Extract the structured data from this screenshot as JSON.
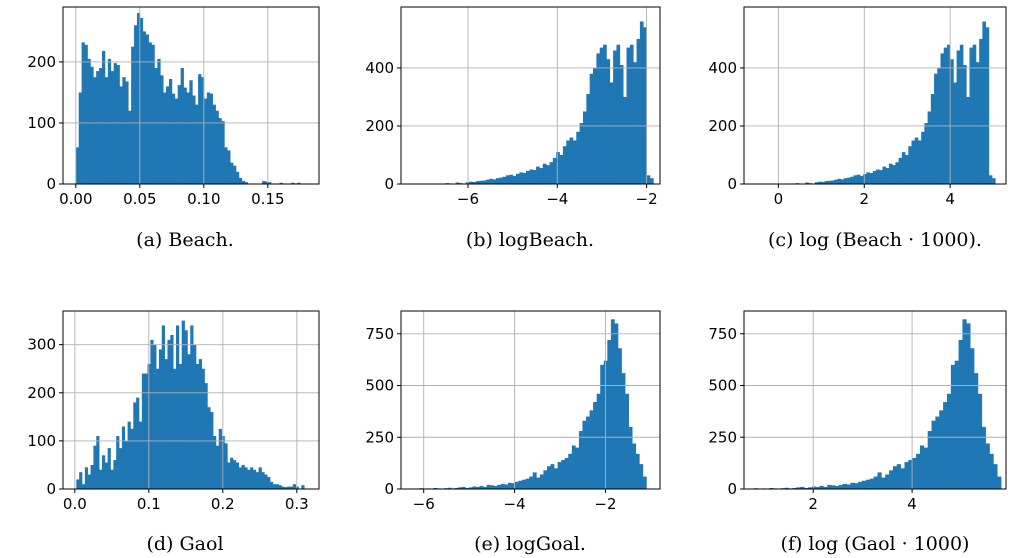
{
  "colors": {
    "bar": "#1f77b4",
    "grid": "#b0b0b0",
    "axis": "#000000"
  },
  "chart_data": [
    {
      "type": "bar",
      "caption": "(a) Beach.",
      "grid": true,
      "xlim": [
        -0.01,
        0.19
      ],
      "ylim": [
        0,
        290
      ],
      "xticks": [
        {
          "value": 0.0,
          "label": "0.00"
        },
        {
          "value": 0.05,
          "label": "0.05"
        },
        {
          "value": 0.1,
          "label": "0.10"
        },
        {
          "value": 0.15,
          "label": "0.15"
        }
      ],
      "yticks": [
        {
          "value": 0,
          "label": "0"
        },
        {
          "value": 100,
          "label": "100"
        },
        {
          "value": 200,
          "label": "200"
        }
      ],
      "bin_range": [
        0.0,
        0.182
      ],
      "counts": [
        60,
        150,
        232,
        228,
        205,
        192,
        175,
        185,
        190,
        218,
        175,
        205,
        185,
        198,
        195,
        160,
        175,
        168,
        120,
        225,
        260,
        280,
        272,
        250,
        245,
        232,
        228,
        190,
        205,
        178,
        150,
        160,
        172,
        148,
        140,
        162,
        190,
        158,
        150,
        170,
        145,
        130,
        180,
        175,
        140,
        150,
        148,
        130,
        120,
        108,
        103,
        60,
        55,
        35,
        30,
        20,
        10,
        5,
        3,
        0,
        0,
        0,
        0,
        0,
        5,
        4,
        3,
        0,
        0,
        0,
        2,
        0,
        0,
        0,
        2,
        0,
        2,
        0,
        0,
        0
      ]
    },
    {
      "type": "bar",
      "caption": "(b) logBeach.",
      "grid": true,
      "xlim": [
        -7.5,
        -1.7
      ],
      "ylim": [
        0,
        610
      ],
      "xticks": [
        {
          "value": -6,
          "label": "−6"
        },
        {
          "value": -4,
          "label": "−4"
        },
        {
          "value": -2,
          "label": "−2"
        }
      ],
      "yticks": [
        {
          "value": 0,
          "label": "0"
        },
        {
          "value": 200,
          "label": "200"
        },
        {
          "value": 400,
          "label": "400"
        }
      ],
      "bin_range": [
        -6.5,
        -1.85
      ],
      "counts": [
        3,
        0,
        0,
        5,
        3,
        0,
        6,
        8,
        7,
        10,
        11,
        12,
        15,
        18,
        16,
        20,
        22,
        25,
        30,
        32,
        28,
        35,
        40,
        38,
        45,
        50,
        48,
        60,
        55,
        70,
        65,
        75,
        90,
        110,
        100,
        130,
        150,
        160,
        150,
        180,
        210,
        250,
        310,
        380,
        400,
        450,
        470,
        480,
        430,
        350,
        460,
        480,
        410,
        300,
        470,
        480,
        420,
        500,
        560,
        540,
        30,
        20
      ]
    },
    {
      "type": "bar",
      "caption": "(c) log (Beach · 1000).",
      "grid": true,
      "xlim": [
        -0.8,
        5.3
      ],
      "ylim": [
        0,
        610
      ],
      "xticks": [
        {
          "value": 0,
          "label": "0"
        },
        {
          "value": 2,
          "label": "2"
        },
        {
          "value": 4,
          "label": "4"
        }
      ],
      "yticks": [
        {
          "value": 0,
          "label": "0"
        },
        {
          "value": 200,
          "label": "200"
        },
        {
          "value": 400,
          "label": "400"
        }
      ],
      "bin_range": [
        0.4,
        5.05
      ],
      "counts": [
        3,
        0,
        0,
        5,
        3,
        0,
        6,
        8,
        7,
        10,
        11,
        12,
        15,
        18,
        16,
        20,
        22,
        25,
        30,
        32,
        28,
        35,
        40,
        38,
        45,
        50,
        48,
        60,
        55,
        70,
        65,
        75,
        90,
        110,
        100,
        130,
        150,
        160,
        150,
        180,
        210,
        250,
        310,
        380,
        400,
        450,
        470,
        480,
        430,
        350,
        460,
        480,
        410,
        300,
        470,
        480,
        420,
        500,
        560,
        540,
        30,
        20
      ]
    },
    {
      "type": "bar",
      "caption": "(d) Gaol",
      "grid": true,
      "xlim": [
        -0.016,
        0.33
      ],
      "ylim": [
        0,
        370
      ],
      "xticks": [
        {
          "value": 0.0,
          "label": "0.0"
        },
        {
          "value": 0.1,
          "label": "0.1"
        },
        {
          "value": 0.2,
          "label": "0.2"
        },
        {
          "value": 0.3,
          "label": "0.3"
        }
      ],
      "yticks": [
        {
          "value": 0,
          "label": "0"
        },
        {
          "value": 100,
          "label": "100"
        },
        {
          "value": 200,
          "label": "200"
        },
        {
          "value": 300,
          "label": "300"
        }
      ],
      "bin_range": [
        0.002,
        0.31
      ],
      "counts": [
        20,
        35,
        10,
        45,
        30,
        50,
        90,
        110,
        40,
        70,
        55,
        85,
        40,
        60,
        110,
        85,
        130,
        100,
        140,
        125,
        180,
        190,
        140,
        240,
        240,
        260,
        310,
        300,
        250,
        290,
        340,
        270,
        310,
        320,
        250,
        340,
        260,
        350,
        330,
        280,
        340,
        300,
        260,
        270,
        250,
        220,
        170,
        160,
        110,
        90,
        125,
        110,
        95,
        55,
        65,
        60,
        55,
        45,
        50,
        45,
        40,
        45,
        40,
        35,
        45,
        35,
        30,
        25,
        15,
        10,
        10,
        8,
        5,
        4,
        5,
        5,
        10,
        5,
        0,
        8
      ]
    },
    {
      "type": "bar",
      "caption": "(e) logGoal.",
      "grid": true,
      "xlim": [
        -6.5,
        -0.8
      ],
      "ylim": [
        0,
        860
      ],
      "xticks": [
        {
          "value": -6,
          "label": "−6"
        },
        {
          "value": -4,
          "label": "−4"
        },
        {
          "value": -2,
          "label": "−2"
        }
      ],
      "yticks": [
        {
          "value": 0,
          "label": "0"
        },
        {
          "value": 250,
          "label": "250"
        },
        {
          "value": 500,
          "label": "500"
        },
        {
          "value": 750,
          "label": "750"
        }
      ],
      "bin_range": [
        -6.1,
        -1.1
      ],
      "counts": [
        4,
        0,
        3,
        0,
        5,
        3,
        0,
        4,
        6,
        3,
        5,
        8,
        10,
        5,
        8,
        12,
        10,
        15,
        10,
        20,
        18,
        15,
        20,
        25,
        22,
        30,
        28,
        35,
        40,
        45,
        50,
        60,
        80,
        55,
        70,
        90,
        110,
        120,
        100,
        130,
        140,
        150,
        170,
        210,
        200,
        280,
        330,
        350,
        380,
        420,
        460,
        600,
        620,
        720,
        820,
        800,
        680,
        560,
        460,
        300,
        220,
        170,
        120,
        60
      ]
    },
    {
      "type": "bar",
      "caption": "(f) log (Gaol · 1000)",
      "grid": true,
      "xlim": [
        0.6,
        5.9
      ],
      "ylim": [
        0,
        860
      ],
      "xticks": [
        {
          "value": 2,
          "label": "2"
        },
        {
          "value": 4,
          "label": "4"
        }
      ],
      "yticks": [
        {
          "value": 0,
          "label": "0"
        },
        {
          "value": 250,
          "label": "250"
        },
        {
          "value": 500,
          "label": "500"
        },
        {
          "value": 750,
          "label": "750"
        }
      ],
      "bin_range": [
        0.8,
        5.8
      ],
      "counts": [
        4,
        0,
        3,
        0,
        5,
        3,
        0,
        4,
        6,
        3,
        5,
        8,
        10,
        5,
        8,
        12,
        10,
        15,
        10,
        20,
        18,
        15,
        20,
        25,
        22,
        30,
        28,
        35,
        40,
        45,
        50,
        60,
        80,
        55,
        70,
        90,
        110,
        120,
        100,
        130,
        140,
        150,
        170,
        210,
        200,
        280,
        330,
        350,
        380,
        420,
        460,
        600,
        620,
        720,
        820,
        800,
        680,
        560,
        460,
        300,
        220,
        170,
        120,
        60
      ]
    }
  ]
}
